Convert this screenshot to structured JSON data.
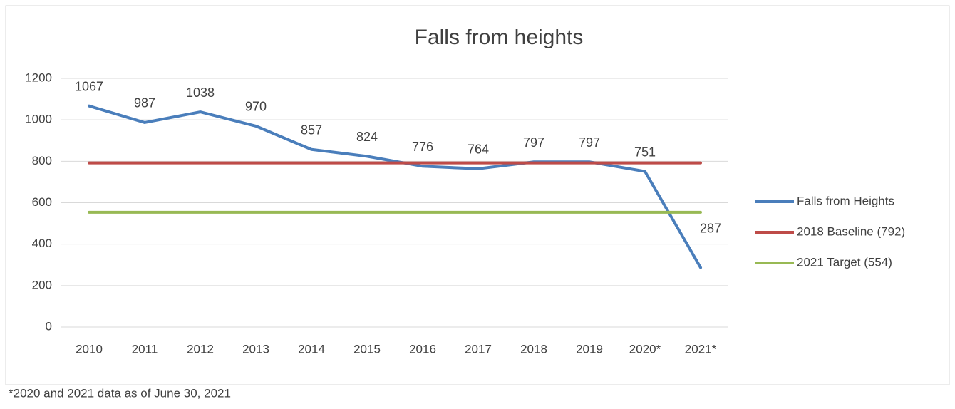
{
  "chart_data": {
    "type": "line",
    "title": "Falls from heights",
    "categories": [
      "2010",
      "2011",
      "2012",
      "2013",
      "2014",
      "2015",
      "2016",
      "2017",
      "2018",
      "2019",
      "2020*",
      "2021*"
    ],
    "series": [
      {
        "name": "Falls from Heights",
        "color": "#4a7ebb",
        "show_labels": true,
        "values": [
          1067,
          987,
          1038,
          970,
          857,
          824,
          776,
          764,
          797,
          797,
          751,
          287
        ]
      },
      {
        "name": "2018 Baseline (792)",
        "color": "#be4b48",
        "show_labels": false,
        "values": [
          792,
          792,
          792,
          792,
          792,
          792,
          792,
          792,
          792,
          792,
          792,
          792
        ]
      },
      {
        "name": "2021 Target (554)",
        "color": "#98b954",
        "show_labels": false,
        "values": [
          554,
          554,
          554,
          554,
          554,
          554,
          554,
          554,
          554,
          554,
          554,
          554
        ]
      }
    ],
    "ylim": [
      0,
      1200
    ],
    "yticks": [
      0,
      200,
      400,
      600,
      800,
      1000,
      1200
    ],
    "grid": true,
    "legend": "right",
    "note": "*2020 and 2021 data as of June 30, 2021"
  }
}
